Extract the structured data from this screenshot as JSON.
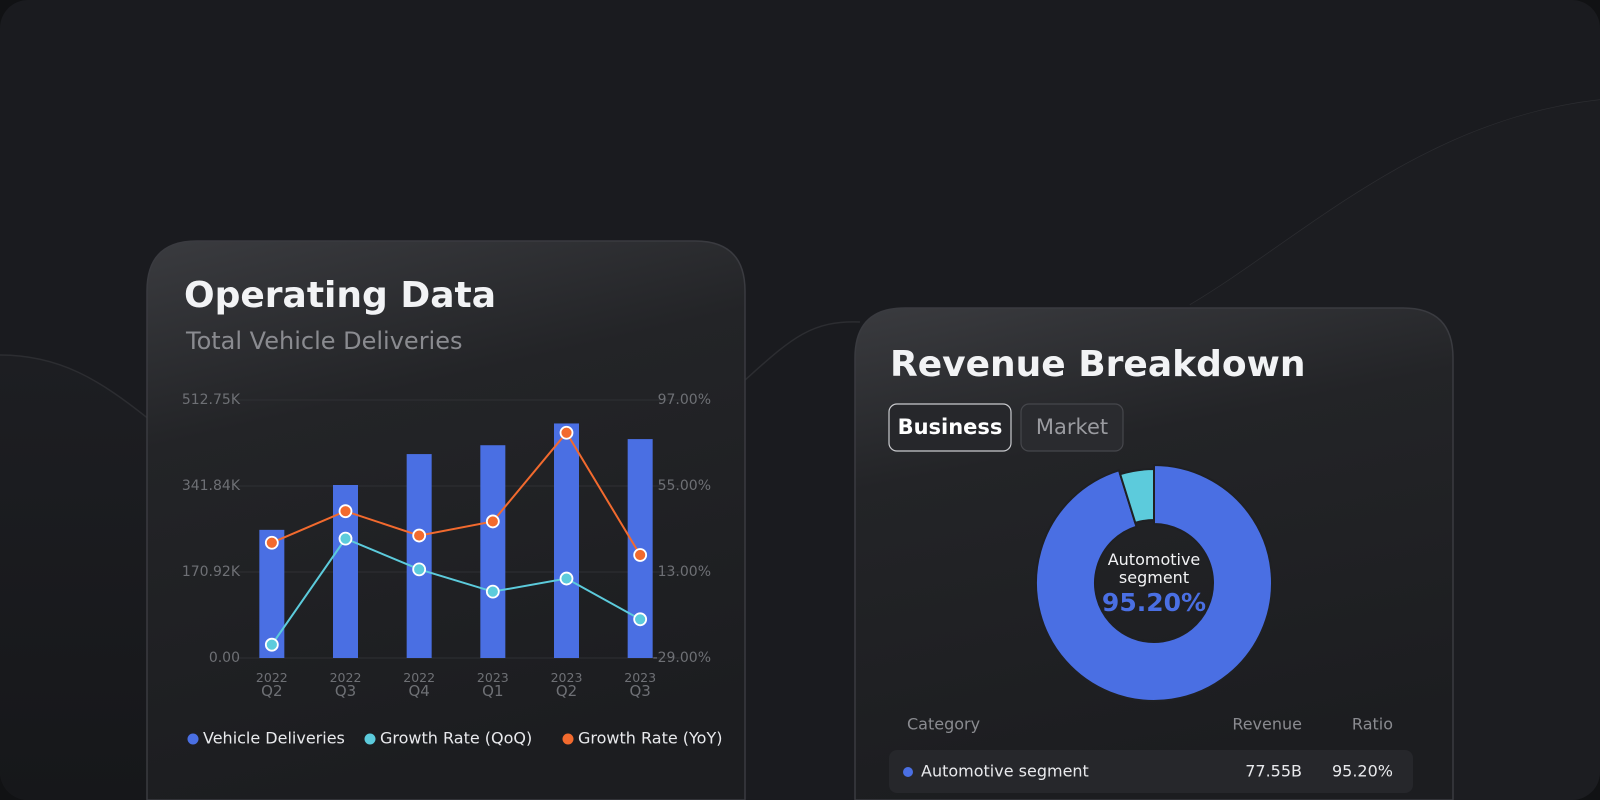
{
  "chart_data": [
    {
      "type": "bar-line",
      "title": "Operating Data",
      "subtitle": "Total Vehicle Deliveries",
      "categories": [
        "2022 Q2",
        "2022 Q3",
        "2022 Q4",
        "2023 Q1",
        "2023 Q2",
        "2023 Q3"
      ],
      "series": [
        {
          "name": "Vehicle Deliveries",
          "type": "bar",
          "color": "#4a6fe3",
          "values": [
            254695,
            343830,
            405278,
            422875,
            466140,
            435059
          ]
        },
        {
          "name": "Growth Rate (QoQ)",
          "type": "line",
          "axis": "y2",
          "color": "#5ccbdc",
          "values": [
            -22.5,
            29.3,
            14.3,
            3.4,
            9.8,
            -10.1
          ]
        },
        {
          "name": "Growth Rate (YoY)",
          "type": "line",
          "axis": "y2",
          "color": "#f26a2e",
          "values": [
            27.3,
            42.7,
            30.8,
            37.7,
            81,
            21.3
          ]
        }
      ],
      "ylim": [
        0,
        512750
      ],
      "yticks": [
        {
          "value": 0,
          "label": "0.00"
        },
        {
          "value": 170920,
          "label": "170.92K"
        },
        {
          "value": 341840,
          "label": "341.84K"
        },
        {
          "value": 512750,
          "label": "512.75K"
        }
      ],
      "y2lim": [
        -29,
        97
      ],
      "y2ticks": [
        {
          "value": -29,
          "label": "-29.00%"
        },
        {
          "value": 13,
          "label": "13.00%"
        },
        {
          "value": 55,
          "label": "55.00%"
        },
        {
          "value": 97,
          "label": "97.00%"
        }
      ],
      "grid": true
    },
    {
      "type": "donut",
      "title": "Revenue Breakdown",
      "categories": [
        "Automotive segment",
        null
      ],
      "values": [
        95.2,
        4.8
      ],
      "value_labels": [
        "95.20%",
        null
      ],
      "colors": [
        "#4a6fe3",
        "#5ccbdc"
      ]
    }
  ],
  "tabs": [
    "Business",
    "Market"
  ],
  "table": {
    "headers": [
      "Category",
      "Revenue",
      "Ratio"
    ],
    "rows": [
      [
        "Automotive segment",
        "77.55B",
        "95.20%"
      ]
    ]
  }
}
